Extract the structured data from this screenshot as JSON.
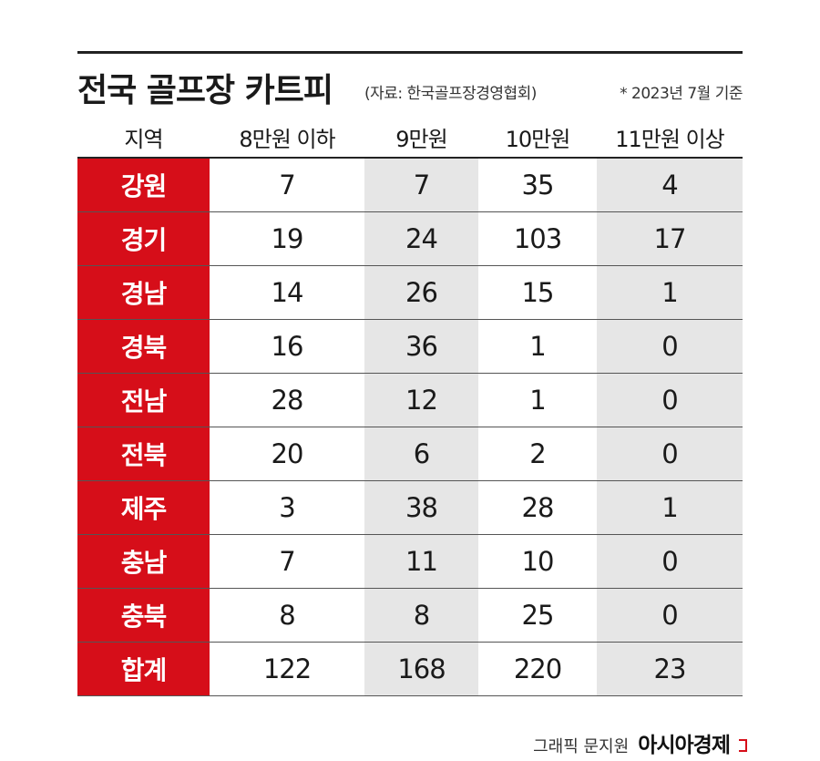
{
  "chart_data": {
    "type": "table",
    "title": "전국 골프장 카트피",
    "source": "(자료: 한국골프장경영협회)",
    "basis_note": "* 2023년 7월 기준",
    "columns": [
      "지역",
      "8만원 이하",
      "9만원",
      "10만원",
      "11만원 이상"
    ],
    "rows": [
      {
        "region": "강원",
        "values": [
          7,
          7,
          35,
          4
        ]
      },
      {
        "region": "경기",
        "values": [
          19,
          24,
          103,
          17
        ]
      },
      {
        "region": "경남",
        "values": [
          14,
          26,
          15,
          1
        ]
      },
      {
        "region": "경북",
        "values": [
          16,
          36,
          1,
          0
        ]
      },
      {
        "region": "전남",
        "values": [
          28,
          12,
          1,
          0
        ]
      },
      {
        "region": "전북",
        "values": [
          20,
          6,
          2,
          0
        ]
      },
      {
        "region": "제주",
        "values": [
          3,
          38,
          28,
          1
        ]
      },
      {
        "region": "충남",
        "values": [
          7,
          11,
          10,
          0
        ]
      },
      {
        "region": "충북",
        "values": [
          8,
          8,
          25,
          0
        ]
      },
      {
        "region": "합계",
        "values": [
          122,
          168,
          220,
          23
        ]
      }
    ]
  },
  "footer": {
    "credit": "그래픽 문지원",
    "brand": "아시아경제"
  },
  "colors": {
    "accent_red": "#d60e19",
    "shade_gray": "#e6e6e6"
  }
}
